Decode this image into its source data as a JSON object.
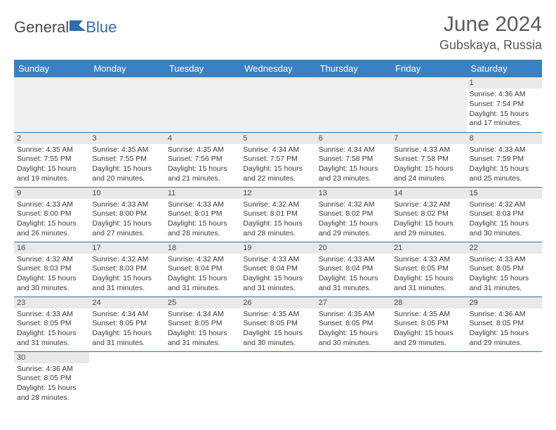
{
  "logo": {
    "part1": "General",
    "part2": "Blue"
  },
  "title": "June 2024",
  "location": "Gubskaya, Russia",
  "colors": {
    "header_bg": "#3a81c4",
    "header_text": "#ffffff",
    "cell_border": "#2b6fb0",
    "daynum_bg": "#e9e9e9",
    "blank_bg": "#f0f0f0",
    "text": "#3b3b3b",
    "title_color": "#5a5a5a"
  },
  "weekdays": [
    "Sunday",
    "Monday",
    "Tuesday",
    "Wednesday",
    "Thursday",
    "Friday",
    "Saturday"
  ],
  "weeks": [
    [
      null,
      null,
      null,
      null,
      null,
      null,
      {
        "n": "1",
        "sr": "Sunrise: 4:36 AM",
        "ss": "Sunset: 7:54 PM",
        "d1": "Daylight: 15 hours",
        "d2": "and 17 minutes."
      }
    ],
    [
      {
        "n": "2",
        "sr": "Sunrise: 4:35 AM",
        "ss": "Sunset: 7:55 PM",
        "d1": "Daylight: 15 hours",
        "d2": "and 19 minutes."
      },
      {
        "n": "3",
        "sr": "Sunrise: 4:35 AM",
        "ss": "Sunset: 7:55 PM",
        "d1": "Daylight: 15 hours",
        "d2": "and 20 minutes."
      },
      {
        "n": "4",
        "sr": "Sunrise: 4:35 AM",
        "ss": "Sunset: 7:56 PM",
        "d1": "Daylight: 15 hours",
        "d2": "and 21 minutes."
      },
      {
        "n": "5",
        "sr": "Sunrise: 4:34 AM",
        "ss": "Sunset: 7:57 PM",
        "d1": "Daylight: 15 hours",
        "d2": "and 22 minutes."
      },
      {
        "n": "6",
        "sr": "Sunrise: 4:34 AM",
        "ss": "Sunset: 7:58 PM",
        "d1": "Daylight: 15 hours",
        "d2": "and 23 minutes."
      },
      {
        "n": "7",
        "sr": "Sunrise: 4:33 AM",
        "ss": "Sunset: 7:58 PM",
        "d1": "Daylight: 15 hours",
        "d2": "and 24 minutes."
      },
      {
        "n": "8",
        "sr": "Sunrise: 4:33 AM",
        "ss": "Sunset: 7:59 PM",
        "d1": "Daylight: 15 hours",
        "d2": "and 25 minutes."
      }
    ],
    [
      {
        "n": "9",
        "sr": "Sunrise: 4:33 AM",
        "ss": "Sunset: 8:00 PM",
        "d1": "Daylight: 15 hours",
        "d2": "and 26 minutes."
      },
      {
        "n": "10",
        "sr": "Sunrise: 4:33 AM",
        "ss": "Sunset: 8:00 PM",
        "d1": "Daylight: 15 hours",
        "d2": "and 27 minutes."
      },
      {
        "n": "11",
        "sr": "Sunrise: 4:33 AM",
        "ss": "Sunset: 8:01 PM",
        "d1": "Daylight: 15 hours",
        "d2": "and 28 minutes."
      },
      {
        "n": "12",
        "sr": "Sunrise: 4:32 AM",
        "ss": "Sunset: 8:01 PM",
        "d1": "Daylight: 15 hours",
        "d2": "and 28 minutes."
      },
      {
        "n": "13",
        "sr": "Sunrise: 4:32 AM",
        "ss": "Sunset: 8:02 PM",
        "d1": "Daylight: 15 hours",
        "d2": "and 29 minutes."
      },
      {
        "n": "14",
        "sr": "Sunrise: 4:32 AM",
        "ss": "Sunset: 8:02 PM",
        "d1": "Daylight: 15 hours",
        "d2": "and 29 minutes."
      },
      {
        "n": "15",
        "sr": "Sunrise: 4:32 AM",
        "ss": "Sunset: 8:03 PM",
        "d1": "Daylight: 15 hours",
        "d2": "and 30 minutes."
      }
    ],
    [
      {
        "n": "16",
        "sr": "Sunrise: 4:32 AM",
        "ss": "Sunset: 8:03 PM",
        "d1": "Daylight: 15 hours",
        "d2": "and 30 minutes."
      },
      {
        "n": "17",
        "sr": "Sunrise: 4:32 AM",
        "ss": "Sunset: 8:03 PM",
        "d1": "Daylight: 15 hours",
        "d2": "and 31 minutes."
      },
      {
        "n": "18",
        "sr": "Sunrise: 4:32 AM",
        "ss": "Sunset: 8:04 PM",
        "d1": "Daylight: 15 hours",
        "d2": "and 31 minutes."
      },
      {
        "n": "19",
        "sr": "Sunrise: 4:33 AM",
        "ss": "Sunset: 8:04 PM",
        "d1": "Daylight: 15 hours",
        "d2": "and 31 minutes."
      },
      {
        "n": "20",
        "sr": "Sunrise: 4:33 AM",
        "ss": "Sunset: 8:04 PM",
        "d1": "Daylight: 15 hours",
        "d2": "and 31 minutes."
      },
      {
        "n": "21",
        "sr": "Sunrise: 4:33 AM",
        "ss": "Sunset: 8:05 PM",
        "d1": "Daylight: 15 hours",
        "d2": "and 31 minutes."
      },
      {
        "n": "22",
        "sr": "Sunrise: 4:33 AM",
        "ss": "Sunset: 8:05 PM",
        "d1": "Daylight: 15 hours",
        "d2": "and 31 minutes."
      }
    ],
    [
      {
        "n": "23",
        "sr": "Sunrise: 4:33 AM",
        "ss": "Sunset: 8:05 PM",
        "d1": "Daylight: 15 hours",
        "d2": "and 31 minutes."
      },
      {
        "n": "24",
        "sr": "Sunrise: 4:34 AM",
        "ss": "Sunset: 8:05 PM",
        "d1": "Daylight: 15 hours",
        "d2": "and 31 minutes."
      },
      {
        "n": "25",
        "sr": "Sunrise: 4:34 AM",
        "ss": "Sunset: 8:05 PM",
        "d1": "Daylight: 15 hours",
        "d2": "and 31 minutes."
      },
      {
        "n": "26",
        "sr": "Sunrise: 4:35 AM",
        "ss": "Sunset: 8:05 PM",
        "d1": "Daylight: 15 hours",
        "d2": "and 30 minutes."
      },
      {
        "n": "27",
        "sr": "Sunrise: 4:35 AM",
        "ss": "Sunset: 8:05 PM",
        "d1": "Daylight: 15 hours",
        "d2": "and 30 minutes."
      },
      {
        "n": "28",
        "sr": "Sunrise: 4:35 AM",
        "ss": "Sunset: 8:05 PM",
        "d1": "Daylight: 15 hours",
        "d2": "and 29 minutes."
      },
      {
        "n": "29",
        "sr": "Sunrise: 4:36 AM",
        "ss": "Sunset: 8:05 PM",
        "d1": "Daylight: 15 hours",
        "d2": "and 29 minutes."
      }
    ],
    [
      {
        "n": "30",
        "sr": "Sunrise: 4:36 AM",
        "ss": "Sunset: 8:05 PM",
        "d1": "Daylight: 15 hours",
        "d2": "and 28 minutes."
      },
      null,
      null,
      null,
      null,
      null,
      null
    ]
  ]
}
